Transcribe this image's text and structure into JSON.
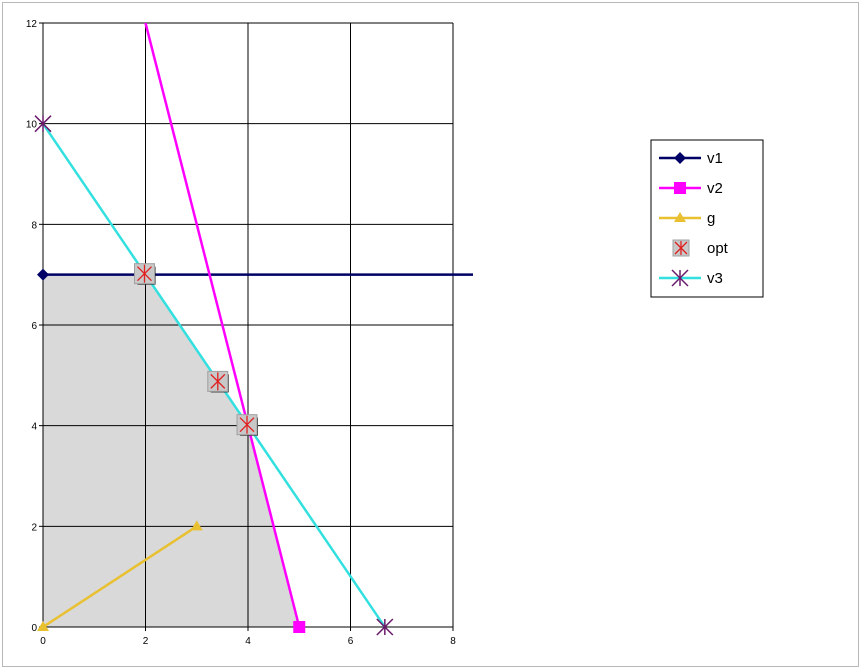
{
  "chart_data": {
    "type": "line",
    "title": "",
    "xlabel": "",
    "ylabel": "",
    "xlim": [
      0,
      8
    ],
    "ylim": [
      0,
      12
    ],
    "x_ticks": [
      0,
      2,
      4,
      6,
      8
    ],
    "y_ticks": [
      0,
      2,
      4,
      6,
      8,
      10,
      12
    ],
    "grid": true,
    "legend": "right",
    "feasible_region": {
      "points": [
        [
          0,
          0
        ],
        [
          0,
          7
        ],
        [
          2,
          7
        ],
        [
          3.43,
          4.86
        ],
        [
          4,
          4
        ],
        [
          5,
          0
        ]
      ],
      "color": "#d9d9d9"
    },
    "series": [
      {
        "name": "v1",
        "color": "#000066",
        "marker": "diamond",
        "points": [
          [
            0,
            7
          ],
          [
            8.4,
            7
          ]
        ],
        "marker_points": [
          [
            0,
            7
          ]
        ]
      },
      {
        "name": "v2",
        "color": "#ff00ff",
        "marker": "square",
        "points": [
          [
            1.95,
            12.2
          ],
          [
            5,
            0
          ]
        ],
        "marker_points": [
          [
            5,
            0
          ]
        ]
      },
      {
        "name": "g",
        "color": "#e8c030",
        "marker": "triangle",
        "points": [
          [
            0,
            0
          ],
          [
            3,
            2
          ]
        ],
        "marker_points": [
          [
            0,
            0
          ],
          [
            3,
            2
          ]
        ]
      },
      {
        "name": "opt",
        "color": "#e02020",
        "marker": "asterisk-box",
        "points": [
          [
            2,
            7
          ],
          [
            3.43,
            4.86
          ],
          [
            4,
            4
          ]
        ],
        "marker_points": [
          [
            2,
            7
          ],
          [
            3.43,
            4.86
          ],
          [
            4,
            4
          ]
        ]
      },
      {
        "name": "v3",
        "color": "#33e0e0",
        "marker": "asterisk",
        "points": [
          [
            0,
            10
          ],
          [
            6.67,
            0
          ]
        ],
        "marker_points": [
          [
            0,
            10
          ],
          [
            6.67,
            0
          ]
        ]
      }
    ]
  }
}
